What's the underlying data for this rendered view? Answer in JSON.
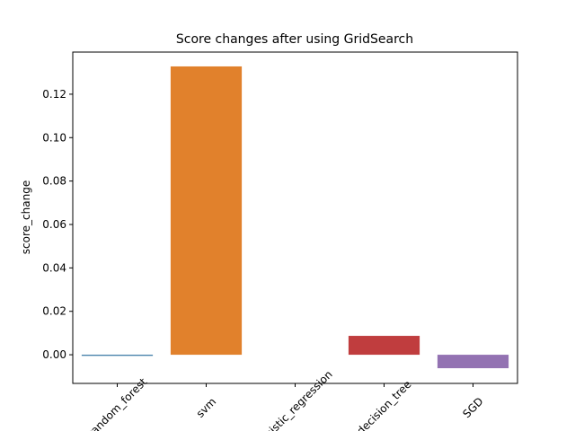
{
  "chart_data": {
    "type": "bar",
    "title": "Score changes after using GridSearch",
    "y_label": "score_change",
    "categories": [
      "random_forest",
      "svm",
      "logistic_regression",
      "decision_tree",
      "SGD"
    ],
    "values": [
      -0.0005,
      0.1328,
      0,
      0.0087,
      -0.0062
    ],
    "colors": [
      "#3274a1",
      "#e1812c",
      "#3a923a",
      "#c03d3e",
      "#9372b2"
    ],
    "ylim": [
      -0.0132,
      0.1394
    ],
    "yticks": [
      {
        "value": 0,
        "label": "0.00"
      },
      {
        "value": 0.02,
        "label": "0.02"
      },
      {
        "value": 0.04,
        "label": "0.04"
      },
      {
        "value": 0.06,
        "label": "0.06"
      },
      {
        "value": 0.08,
        "label": "0.08"
      },
      {
        "value": 0.1,
        "label": "0.10"
      },
      {
        "value": 0.12,
        "label": "0.12"
      }
    ],
    "grid": false
  }
}
